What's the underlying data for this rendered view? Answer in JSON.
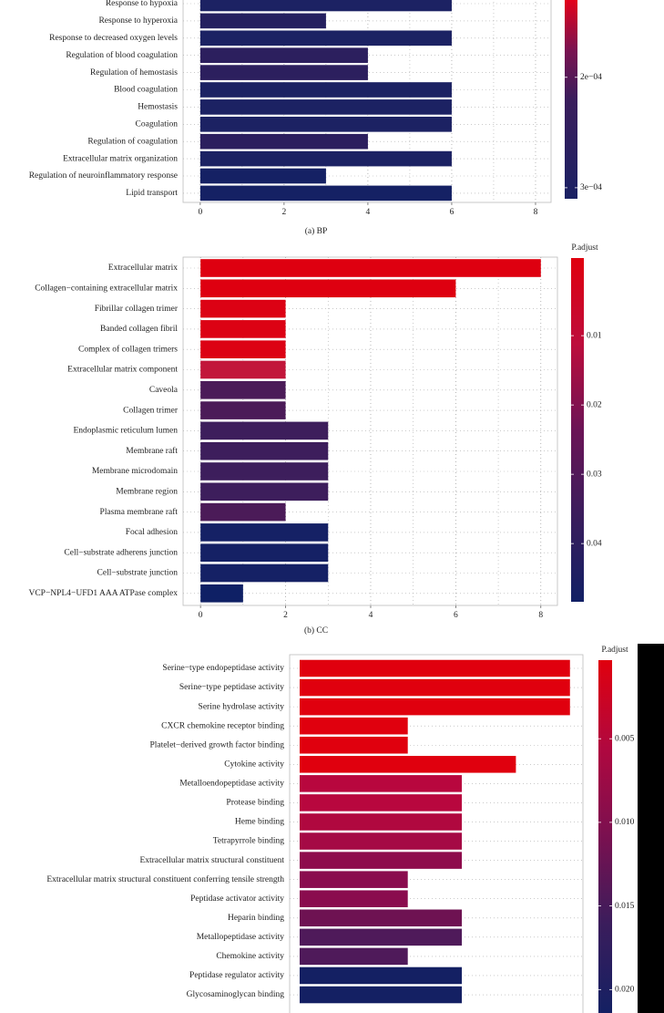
{
  "chart_data": [
    {
      "type": "bar",
      "orientation": "horizontal",
      "caption": "(a) BP",
      "categories": [
        "Response to hypoxia",
        "Response to hyperoxia",
        "Response to decreased oxygen levels",
        "Regulation of blood coagulation",
        "Regulation of hemostasis",
        "Blood coagulation",
        "Hemostasis",
        "Coagulation",
        "Regulation of coagulation",
        "Extracellular matrix organization",
        "Regulation of neuroinflammatory response",
        "Lipid transport"
      ],
      "values": [
        6,
        3,
        6,
        4,
        4,
        6,
        6,
        6,
        4,
        6,
        3,
        6
      ],
      "colors": [
        "#1c2263",
        "#25205f",
        "#1c2263",
        "#2c1f5e",
        "#2c1f5e",
        "#1c2263",
        "#1c2263",
        "#1c2263",
        "#2c1f5e",
        "#1c2263",
        "#152164",
        "#152164"
      ],
      "xlim": [
        -0.41,
        8.37
      ],
      "xticks": [
        0,
        2,
        4,
        6,
        8
      ],
      "grid": true,
      "colorbar_lim": [
        0.00013,
        0.00031
      ],
      "colorbar_ticks": [
        {
          "value": 0.0002,
          "label": "2e−04"
        },
        {
          "value": 0.0003,
          "label": "3e−04"
        }
      ],
      "colorbar_colors": [
        "#e3001a",
        "#7a1250",
        "#3a1d5c",
        "#2a1f5f",
        "#1a2163"
      ]
    },
    {
      "type": "bar",
      "orientation": "horizontal",
      "caption": "(b) CC",
      "colorbar_label": "P.adjust",
      "categories": [
        "Extracellular matrix",
        "Collagen−containing extracellular matrix",
        "Fibrillar collagen trimer",
        "Banded collagen fibril",
        "Complex of collagen trimers",
        "Extracellular matrix component",
        "Caveola",
        "Collagen trimer",
        "Endoplasmic reticulum lumen",
        "Membrane raft",
        "Membrane microdomain",
        "Membrane region",
        "Plasma membrane raft",
        "Focal adhesion",
        "Cell−substrate adherens junction",
        "Cell−substrate junction",
        "VCP−NPL4−UFD1 AAA ATPase complex"
      ],
      "values": [
        8,
        6,
        2,
        2,
        2,
        2,
        2,
        2,
        3,
        3,
        3,
        3,
        2,
        3,
        3,
        3,
        1
      ],
      "colors": [
        "#de0010",
        "#de0010",
        "#dc0214",
        "#dc0214",
        "#dc0214",
        "#c2163a",
        "#4b1b58",
        "#4b1b58",
        "#3d1e5c",
        "#3d1e5c",
        "#3d1e5c",
        "#3d1e5c",
        "#4b1b58",
        "#152165",
        "#152165",
        "#152165",
        "#0f2065"
      ],
      "xlim": [
        -0.41,
        8.39
      ],
      "xticks": [
        0,
        2,
        4,
        6,
        8
      ],
      "grid": true,
      "colorbar_lim": [
        -0.0012,
        0.0484
      ],
      "colorbar_ticks": [
        0.01,
        0.02,
        0.03,
        0.04
      ],
      "colorbar_colors": [
        "#e0000e",
        "#bd0d3c",
        "#6b1456",
        "#3a1d5c",
        "#122065"
      ]
    },
    {
      "type": "bar",
      "orientation": "horizontal",
      "colorbar_label": "P.adjust",
      "categories": [
        "Serine−type endopeptidase activity",
        "Serine−type peptidase activity",
        "Serine hydrolase activity",
        "CXCR chemokine receptor binding",
        "Platelet−derived growth factor binding",
        "Cytokine activity",
        "Metalloendopeptidase activity",
        "Protease binding",
        "Heme binding",
        "Tetrapyrrole binding",
        "Extracellular matrix structural constituent",
        "Extracellular matrix structural constituent conferring tensile strength",
        "Peptidase activator activity",
        "Heparin binding",
        "Metallopeptidase activity",
        "Chemokine activity",
        "Peptidase regulator activity",
        "Glycosaminoglycan binding"
      ],
      "values": [
        5,
        5,
        5,
        2,
        2,
        4,
        3,
        3,
        3,
        3,
        3,
        2,
        2,
        3,
        3,
        2,
        3,
        3
      ],
      "colors": [
        "#e0000e",
        "#e0000e",
        "#e0000e",
        "#e0000e",
        "#e0000e",
        "#e0000e",
        "#b8073e",
        "#b8073e",
        "#b0083f",
        "#a50a45",
        "#8e0c4c",
        "#8a0c4e",
        "#8a0c4e",
        "#6e1252",
        "#4f1a5a",
        "#4f1a5a",
        "#142063",
        "#142063"
      ],
      "xlim": [
        -0.185,
        5.24
      ],
      "grid": false,
      "colorbar_lim": [
        0.0003,
        0.0214
      ],
      "colorbar_ticks": [
        0.005,
        {
          "value": 0.01,
          "label": "0.010"
        },
        0.015,
        {
          "value": 0.02,
          "label": "0.020"
        }
      ],
      "colorbar_colors": [
        "#e0000e",
        "#b0083f",
        "#7a1050",
        "#3a1d5c",
        "#142063"
      ]
    }
  ]
}
